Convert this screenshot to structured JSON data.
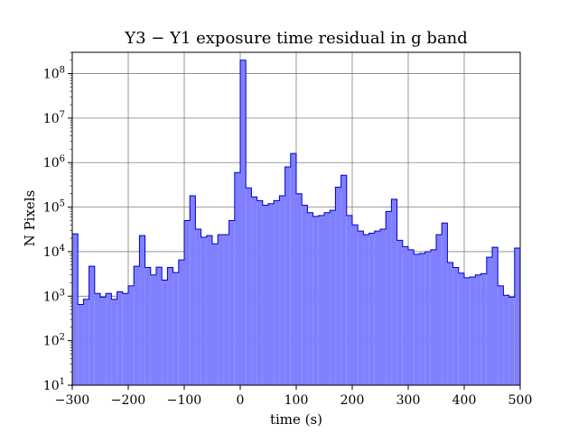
{
  "chart_data": {
    "type": "histogram",
    "title": "Y3 − Y1 exposure time residual in g band",
    "xlabel": "time (s)",
    "ylabel": "N Pixels",
    "xlim": [
      -300,
      500
    ],
    "ylim": [
      10,
      300000000
    ],
    "yscale": "log",
    "grid": true,
    "x_ticks": [
      -300,
      -200,
      -100,
      0,
      100,
      200,
      300,
      400,
      500
    ],
    "x_tick_labels": [
      "−300",
      "−200",
      "−100",
      "0",
      "100",
      "200",
      "300",
      "400",
      "500"
    ],
    "y_ticks": [
      10,
      100,
      1000,
      10000,
      100000,
      1000000,
      10000000,
      100000000
    ],
    "y_tick_base": "10",
    "y_tick_exponents": [
      "1",
      "2",
      "3",
      "4",
      "5",
      "6",
      "7",
      "8"
    ],
    "bin_width": 10,
    "bin_start": -300,
    "values": [
      25000,
      650,
      850,
      4700,
      1150,
      950,
      1150,
      850,
      1250,
      1150,
      1700,
      4700,
      23000,
      4400,
      3000,
      4500,
      2300,
      4400,
      3400,
      6500,
      50000,
      180000,
      32000,
      21000,
      23000,
      15000,
      24000,
      24000,
      50000,
      600000,
      200000000,
      270000,
      170000,
      140000,
      110000,
      120000,
      140000,
      180000,
      800000,
      1600000,
      200000,
      110000,
      75000,
      62000,
      65000,
      75000,
      85000,
      280000,
      520000,
      65000,
      40000,
      29000,
      24000,
      26000,
      29000,
      32000,
      80000,
      150000,
      18000,
      13000,
      11000,
      8700,
      9100,
      10000,
      11000,
      24000,
      44000,
      5700,
      4400,
      3300,
      2600,
      2700,
      3000,
      3200,
      7500,
      12500,
      1700,
      1050,
      950,
      12000
    ],
    "fill_color": "#8080ff",
    "edge_color": "#0000c8",
    "grid_color": "#808080"
  }
}
